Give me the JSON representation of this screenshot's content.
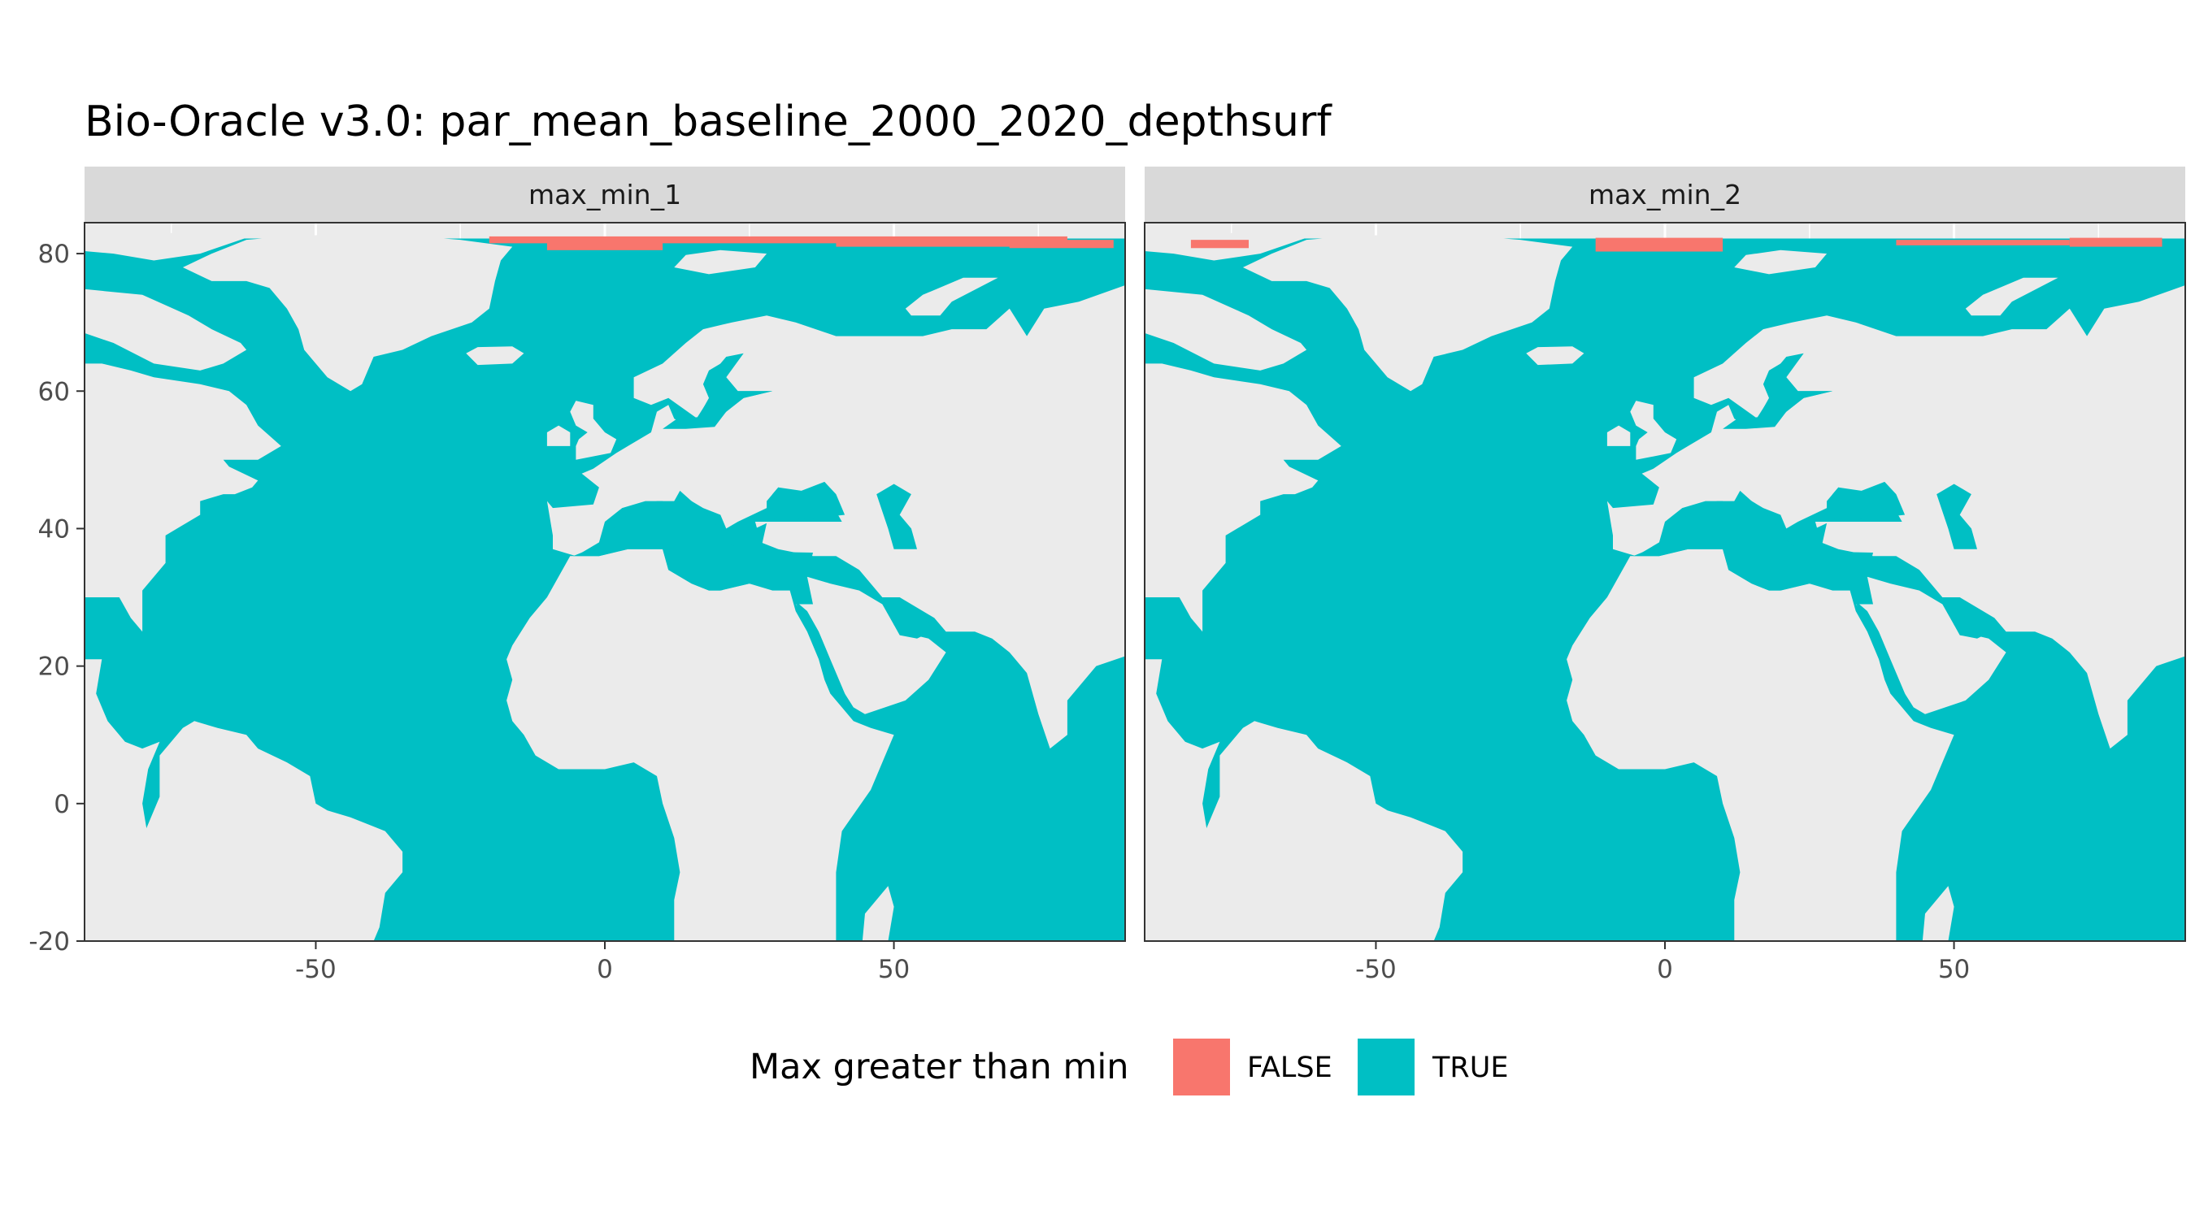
{
  "chart_data": {
    "type": "map",
    "title": "Bio-Oracle v3.0: par_mean_baseline_2000_2020_depthsurf",
    "panels": [
      {
        "name": "max_min_1",
        "false_patches": [
          [
            -20,
            81.5,
            80,
            82.5
          ],
          [
            -10,
            80.5,
            10,
            82.0
          ],
          [
            40,
            81.0,
            78,
            82.2
          ],
          [
            70,
            80.8,
            88,
            82.0
          ]
        ]
      },
      {
        "name": "max_min_2",
        "false_patches": [
          [
            -82,
            80.8,
            -72,
            82.0
          ],
          [
            -12,
            80.3,
            10,
            82.3
          ],
          [
            40,
            81.2,
            70,
            82.0
          ],
          [
            70,
            81.0,
            86,
            82.3
          ]
        ]
      }
    ],
    "xlim": [
      -90,
      90
    ],
    "ylim": [
      -20,
      84.5
    ],
    "x_ticks": [
      -50,
      0,
      50
    ],
    "x_tick_labels": [
      "-50",
      "0",
      "50"
    ],
    "y_ticks": [
      80,
      60,
      40,
      20,
      0,
      -20
    ],
    "y_tick_labels": [
      "80",
      "60",
      "40",
      "20",
      "0",
      "-20"
    ],
    "grid": true,
    "legend": {
      "title": "Max greater than min",
      "placement": "bottom",
      "entries": [
        {
          "label": "FALSE",
          "color": "#F8766D"
        },
        {
          "label": "TRUE",
          "color": "#00BFC4"
        }
      ]
    }
  },
  "colors": {
    "ocean_true": "#00BFC4",
    "false": "#F8766D",
    "land": "#EBEBEB",
    "grid": "#FFFFFF",
    "strip": "#D9D9D9"
  }
}
